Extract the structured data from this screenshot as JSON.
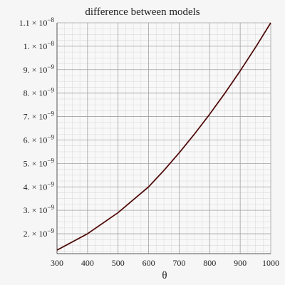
{
  "chart_data": {
    "type": "line",
    "title": "difference between models",
    "xlabel": "θ",
    "ylabel": "",
    "xlim": [
      300,
      1000
    ],
    "ylim": [
      1.15e-09,
      1.1e-08
    ],
    "x_ticks": [
      300,
      400,
      500,
      600,
      700,
      800,
      900,
      1000
    ],
    "y_ticks": [
      {
        "value": 2e-09,
        "mantissa": "2.",
        "exp": "−9"
      },
      {
        "value": 3e-09,
        "mantissa": "3.",
        "exp": "−9"
      },
      {
        "value": 4e-09,
        "mantissa": "4.",
        "exp": "−9"
      },
      {
        "value": 5e-09,
        "mantissa": "5.",
        "exp": "−9"
      },
      {
        "value": 6e-09,
        "mantissa": "6.",
        "exp": "−9"
      },
      {
        "value": 7e-09,
        "mantissa": "7.",
        "exp": "−9"
      },
      {
        "value": 8e-09,
        "mantissa": "8.",
        "exp": "−9"
      },
      {
        "value": 9e-09,
        "mantissa": "9.",
        "exp": "−9"
      },
      {
        "value": 1e-08,
        "mantissa": "1.",
        "exp": "−8"
      },
      {
        "value": 1.1e-08,
        "mantissa": "1.1",
        "exp": "−8"
      }
    ],
    "grid": true,
    "series": [
      {
        "color": "#7a1010",
        "x": [
          300,
          350,
          400,
          450,
          500,
          550,
          600,
          650,
          700,
          750,
          800,
          850,
          900,
          950,
          1000
        ],
        "y": [
          1.3e-09,
          1.65e-09,
          2e-09,
          2.45e-09,
          2.9e-09,
          3.45e-09,
          4e-09,
          4.7e-09,
          5.45e-09,
          6.25e-09,
          7.1e-09,
          8e-09,
          8.95e-09,
          9.95e-09,
          1.1e-08
        ]
      }
    ]
  }
}
